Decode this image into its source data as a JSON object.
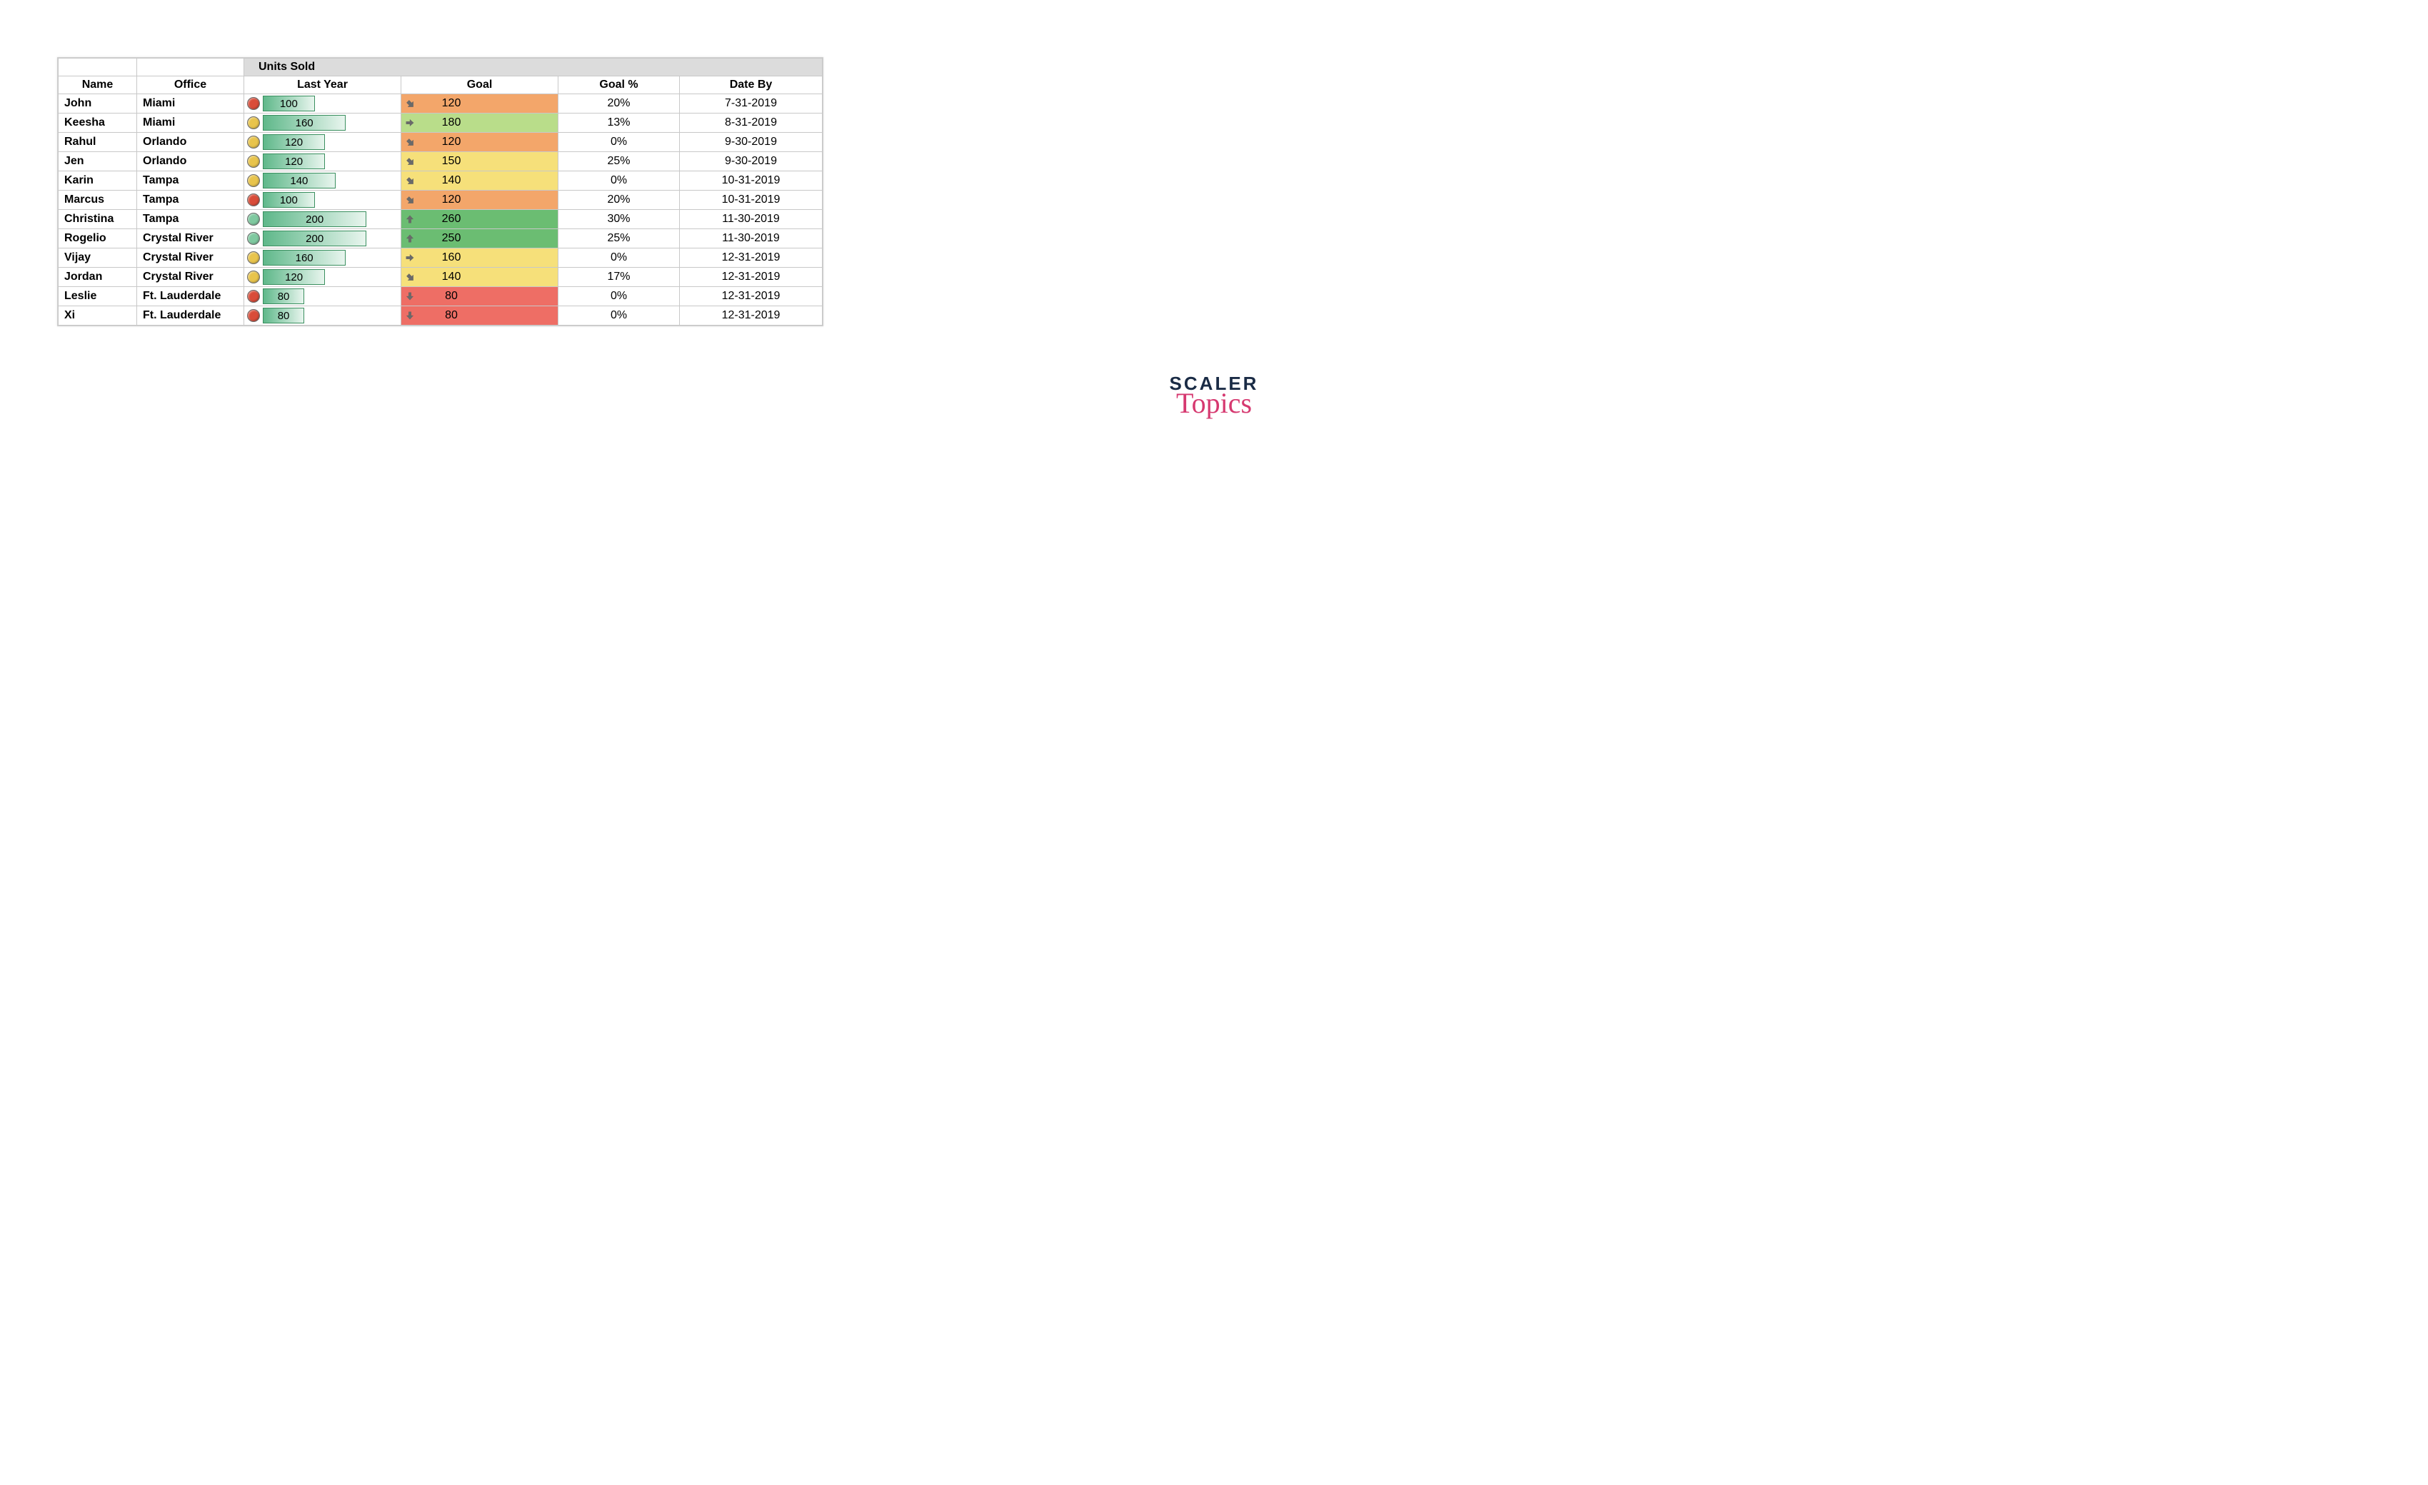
{
  "table": {
    "header_group_label": "Units Sold",
    "columns": [
      "Name",
      "Office",
      "Last Year",
      "Goal",
      "Goal %",
      "Date By"
    ],
    "bar_max_value": 260,
    "bar_gradient_from": "#5fb88a",
    "bar_gradient_to": "#e8f5ee",
    "bar_border_color": "#3a8f5f",
    "circle_colors": {
      "red": "#d94c39",
      "yellow": "#e8c44c",
      "green": "#7fc9a0"
    },
    "goal_bg_colors": {
      "orange": "#f3a66a",
      "lightgreen": "#b9dd8a",
      "yellow": "#f6e07a",
      "green": "#6bbd72",
      "red": "#ee6e65"
    },
    "arrow_color": "#6a6a6a",
    "rows": [
      {
        "name": "John",
        "office": "Miami",
        "last_year": 100,
        "circle": "red",
        "goal": 120,
        "goal_bg": "orange",
        "arrow": "diag-down",
        "goal_pct": "20%",
        "date": "7-31-2019"
      },
      {
        "name": "Keesha",
        "office": "Miami",
        "last_year": 160,
        "circle": "yellow",
        "goal": 180,
        "goal_bg": "lightgreen",
        "arrow": "right",
        "goal_pct": "13%",
        "date": "8-31-2019"
      },
      {
        "name": "Rahul",
        "office": "Orlando",
        "last_year": 120,
        "circle": "yellow",
        "goal": 120,
        "goal_bg": "orange",
        "arrow": "diag-down",
        "goal_pct": "0%",
        "date": "9-30-2019"
      },
      {
        "name": "Jen",
        "office": "Orlando",
        "last_year": 120,
        "circle": "yellow",
        "goal": 150,
        "goal_bg": "yellow",
        "arrow": "diag-down",
        "goal_pct": "25%",
        "date": "9-30-2019"
      },
      {
        "name": "Karin",
        "office": "Tampa",
        "last_year": 140,
        "circle": "yellow",
        "goal": 140,
        "goal_bg": "yellow",
        "arrow": "diag-down",
        "goal_pct": "0%",
        "date": "10-31-2019"
      },
      {
        "name": "Marcus",
        "office": "Tampa",
        "last_year": 100,
        "circle": "red",
        "goal": 120,
        "goal_bg": "orange",
        "arrow": "diag-down",
        "goal_pct": "20%",
        "date": "10-31-2019"
      },
      {
        "name": "Christina",
        "office": "Tampa",
        "last_year": 200,
        "circle": "green",
        "goal": 260,
        "goal_bg": "green",
        "arrow": "up",
        "goal_pct": "30%",
        "date": "11-30-2019"
      },
      {
        "name": "Rogelio",
        "office": "Crystal River",
        "last_year": 200,
        "circle": "green",
        "goal": 250,
        "goal_bg": "green",
        "arrow": "up",
        "goal_pct": "25%",
        "date": "11-30-2019"
      },
      {
        "name": "Vijay",
        "office": "Crystal River",
        "last_year": 160,
        "circle": "yellow",
        "goal": 160,
        "goal_bg": "yellow",
        "arrow": "right",
        "goal_pct": "0%",
        "date": "12-31-2019"
      },
      {
        "name": "Jordan",
        "office": "Crystal River",
        "last_year": 120,
        "circle": "yellow",
        "goal": 140,
        "goal_bg": "yellow",
        "arrow": "diag-down",
        "goal_pct": "17%",
        "date": "12-31-2019"
      },
      {
        "name": "Leslie",
        "office": "Ft. Lauderdale",
        "last_year": 80,
        "circle": "red",
        "goal": 80,
        "goal_bg": "red",
        "arrow": "down",
        "goal_pct": "0%",
        "date": "12-31-2019"
      },
      {
        "name": "Xi",
        "office": "Ft. Lauderdale",
        "last_year": 80,
        "circle": "red",
        "goal": 80,
        "goal_bg": "red",
        "arrow": "down",
        "goal_pct": "0%",
        "date": "12-31-2019"
      }
    ]
  },
  "logo": {
    "line1": "SCALER",
    "line2": "Topics"
  }
}
